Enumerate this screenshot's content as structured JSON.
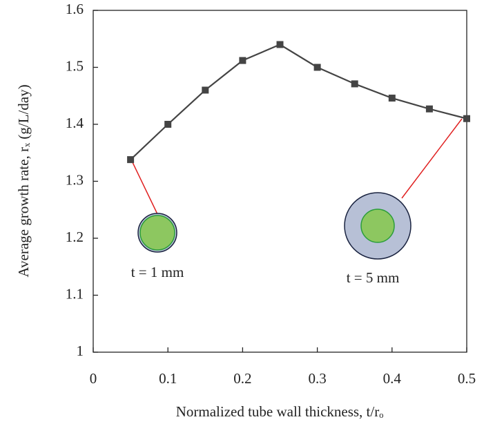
{
  "chart_data": {
    "type": "line",
    "x": [
      0.05,
      0.1,
      0.15,
      0.2,
      0.25,
      0.3,
      0.35,
      0.4,
      0.45,
      0.5
    ],
    "series": [
      {
        "color": "#444444",
        "values": [
          1.338,
          1.4,
          1.46,
          1.512,
          1.54,
          1.5,
          1.471,
          1.446,
          1.427,
          1.41
        ]
      }
    ],
    "xlim": [
      0,
      0.5
    ],
    "xticks": [
      0,
      0.1,
      0.2,
      0.3,
      0.4,
      0.5
    ],
    "ylim": [
      1,
      1.6
    ],
    "yticks": [
      1,
      1.1,
      1.2,
      1.3,
      1.4,
      1.5,
      1.6
    ],
    "xlabel": "Normalized tube wall thickness, t/rₒ",
    "ylabel": "Average growth rate, rₓ (g/L/day)",
    "annotations": [
      "t = 1 mm",
      "t = 5 mm"
    ],
    "grid": false
  }
}
